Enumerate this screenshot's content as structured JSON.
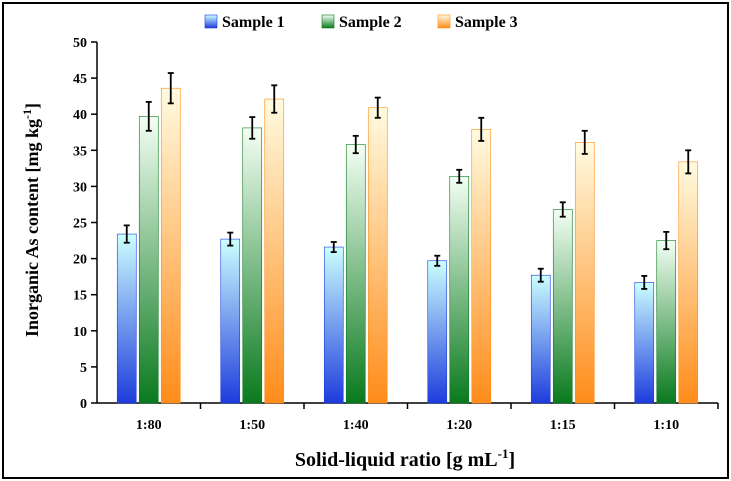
{
  "chart_data": {
    "type": "bar",
    "title": "",
    "categories": [
      "1:80",
      "1:50",
      "1:40",
      "1:20",
      "1:15",
      "1:10"
    ],
    "xlabel": "Solid-liquid ratio [g mL",
    "xlabel_sup": "-1",
    "xlabel_suffix": "]",
    "ylabel": "Inorganic As content [mg kg",
    "ylabel_sup": "-1",
    "ylabel_suffix": "]",
    "ylim": [
      0,
      50
    ],
    "yticks": [
      0,
      5,
      10,
      15,
      20,
      25,
      30,
      35,
      40,
      45,
      50
    ],
    "legend_position": "top-center",
    "series": [
      {
        "name": "Sample 1",
        "values": [
          23.4,
          22.7,
          21.6,
          19.7,
          17.7,
          16.7
        ],
        "errors": [
          1.2,
          0.9,
          0.7,
          0.7,
          0.9,
          0.9
        ],
        "color_top": "#ccffff",
        "color_bottom": "#1e3cdc"
      },
      {
        "name": "Sample 2",
        "values": [
          39.7,
          38.1,
          35.8,
          31.4,
          26.8,
          22.5
        ],
        "errors": [
          2.0,
          1.5,
          1.2,
          0.9,
          1.0,
          1.2
        ],
        "color_top": "#f4fff4",
        "color_bottom": "#0a7a1e"
      },
      {
        "name": "Sample 3",
        "values": [
          43.6,
          42.1,
          40.9,
          37.9,
          36.1,
          33.4
        ],
        "errors": [
          2.1,
          1.9,
          1.4,
          1.6,
          1.6,
          1.6
        ],
        "color_top": "#fffbe0",
        "color_bottom": "#ff8c1a"
      }
    ]
  }
}
